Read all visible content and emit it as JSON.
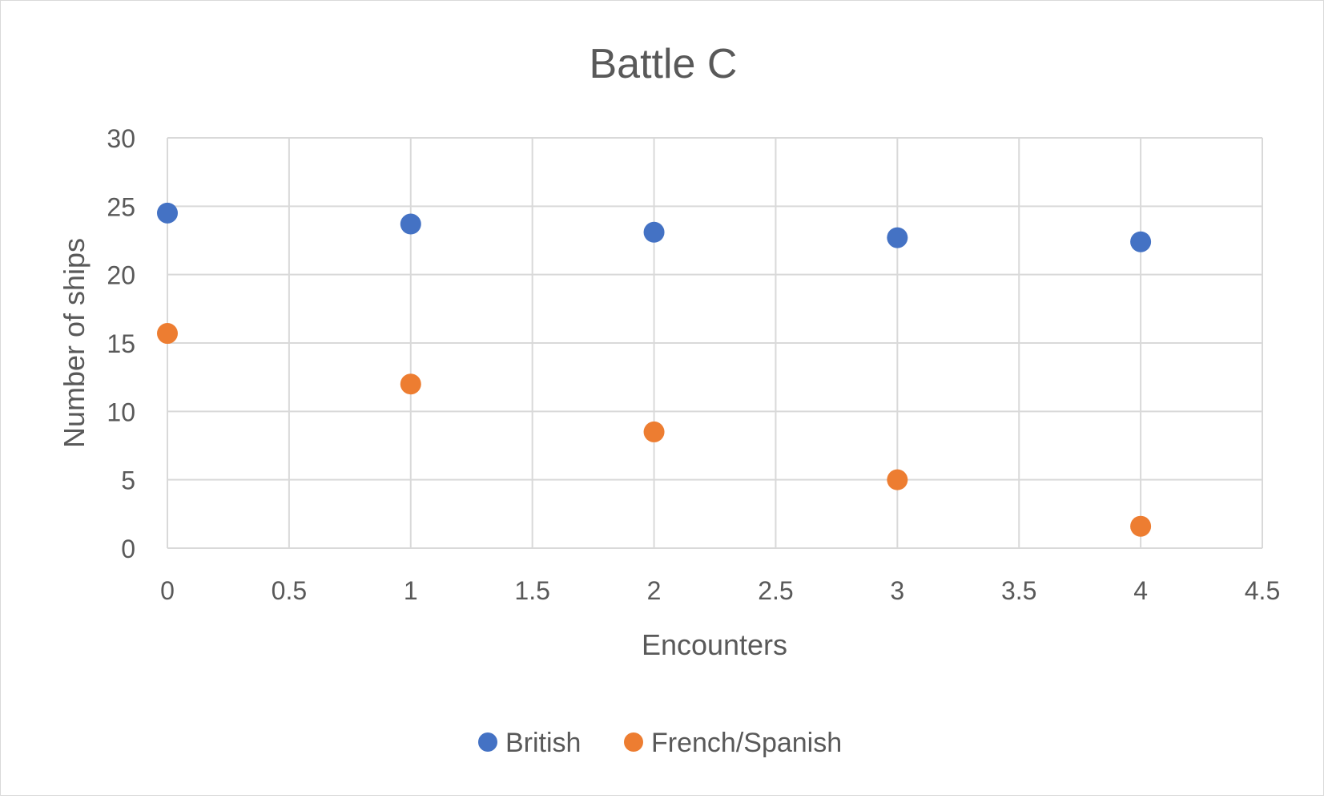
{
  "colors": {
    "british": "#4472C4",
    "french_spanish": "#ED7D31",
    "gridline": "#D9D9D9",
    "text": "#595959"
  },
  "chart_data": {
    "type": "scatter",
    "title": "Battle C",
    "xlabel": "Encounters",
    "ylabel": "Number of ships",
    "xlim": [
      0,
      4.5
    ],
    "ylim": [
      0,
      30
    ],
    "x_ticks": [
      0,
      0.5,
      1,
      1.5,
      2,
      2.5,
      3,
      3.5,
      4,
      4.5
    ],
    "y_ticks": [
      0,
      5,
      10,
      15,
      20,
      25,
      30
    ],
    "x_tick_labels": [
      "0",
      "0.5",
      "1",
      "1.5",
      "2",
      "2.5",
      "3",
      "3.5",
      "4",
      "4.5"
    ],
    "y_tick_labels": [
      "0",
      "5",
      "10",
      "15",
      "20",
      "25",
      "30"
    ],
    "grid": true,
    "legend_position": "bottom",
    "series": [
      {
        "name": "British",
        "color": "#4472C4",
        "x": [
          0,
          1,
          2,
          3,
          4
        ],
        "y": [
          24.5,
          23.7,
          23.1,
          22.7,
          22.4
        ]
      },
      {
        "name": "French/Spanish",
        "color": "#ED7D31",
        "x": [
          0,
          1,
          2,
          3,
          4
        ],
        "y": [
          15.7,
          12,
          8.5,
          5,
          1.6
        ]
      }
    ]
  }
}
